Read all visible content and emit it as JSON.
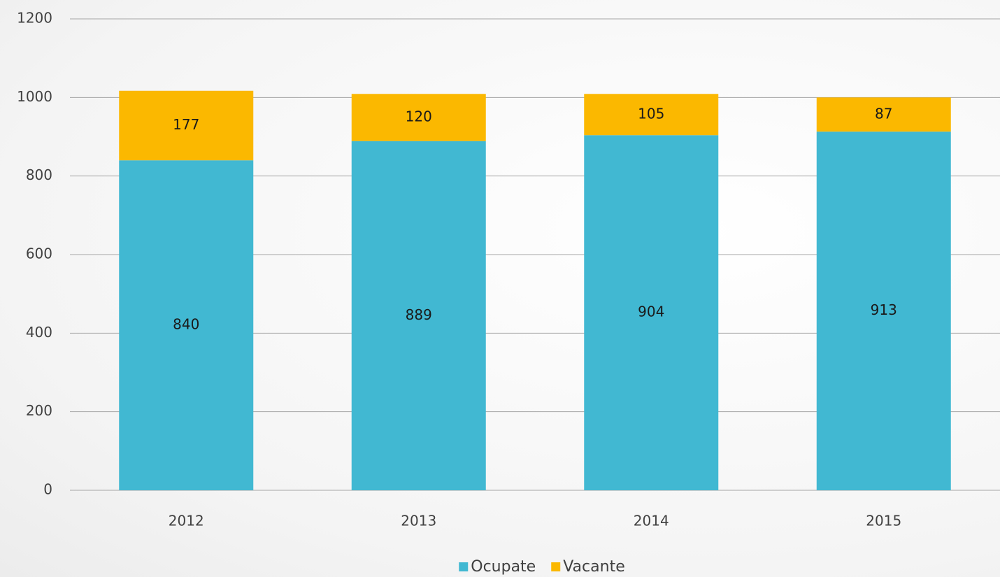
{
  "chart_data": {
    "type": "bar",
    "stacked": true,
    "categories": [
      "2012",
      "2013",
      "2014",
      "2015"
    ],
    "series": [
      {
        "name": "Ocupate",
        "color": "#41b8d2",
        "values": [
          840,
          889,
          904,
          913
        ]
      },
      {
        "name": "Vacante",
        "color": "#fbb800",
        "values": [
          177,
          120,
          105,
          87
        ]
      }
    ],
    "ylim": [
      0,
      1200
    ],
    "yticks": [
      0,
      200,
      400,
      600,
      800,
      1000,
      1200
    ],
    "grid": true,
    "legend": "bottom"
  }
}
